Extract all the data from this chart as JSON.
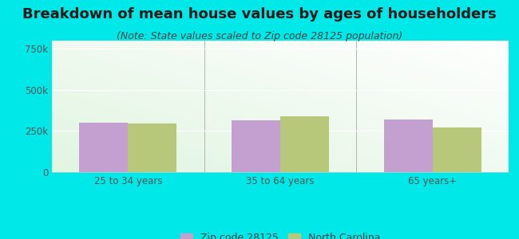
{
  "title": "Breakdown of mean house values by ages of householders",
  "subtitle": "(Note: State values scaled to Zip code 28125 population)",
  "categories": [
    "25 to 34 years",
    "35 to 64 years",
    "65 years+"
  ],
  "zip_values": [
    300000,
    315000,
    318000
  ],
  "state_values": [
    295000,
    340000,
    272000
  ],
  "zip_color": "#c4a0d0",
  "state_color": "#b8c87a",
  "ylim": [
    0,
    800000
  ],
  "yticks": [
    0,
    250000,
    500000,
    750000
  ],
  "ytick_labels": [
    "0",
    "250k",
    "500k",
    "750k"
  ],
  "background_outer": "#00e8e8",
  "zip_label": "Zip code 28125",
  "state_label": "North Carolina",
  "title_fontsize": 13,
  "subtitle_fontsize": 9,
  "bar_width": 0.32
}
